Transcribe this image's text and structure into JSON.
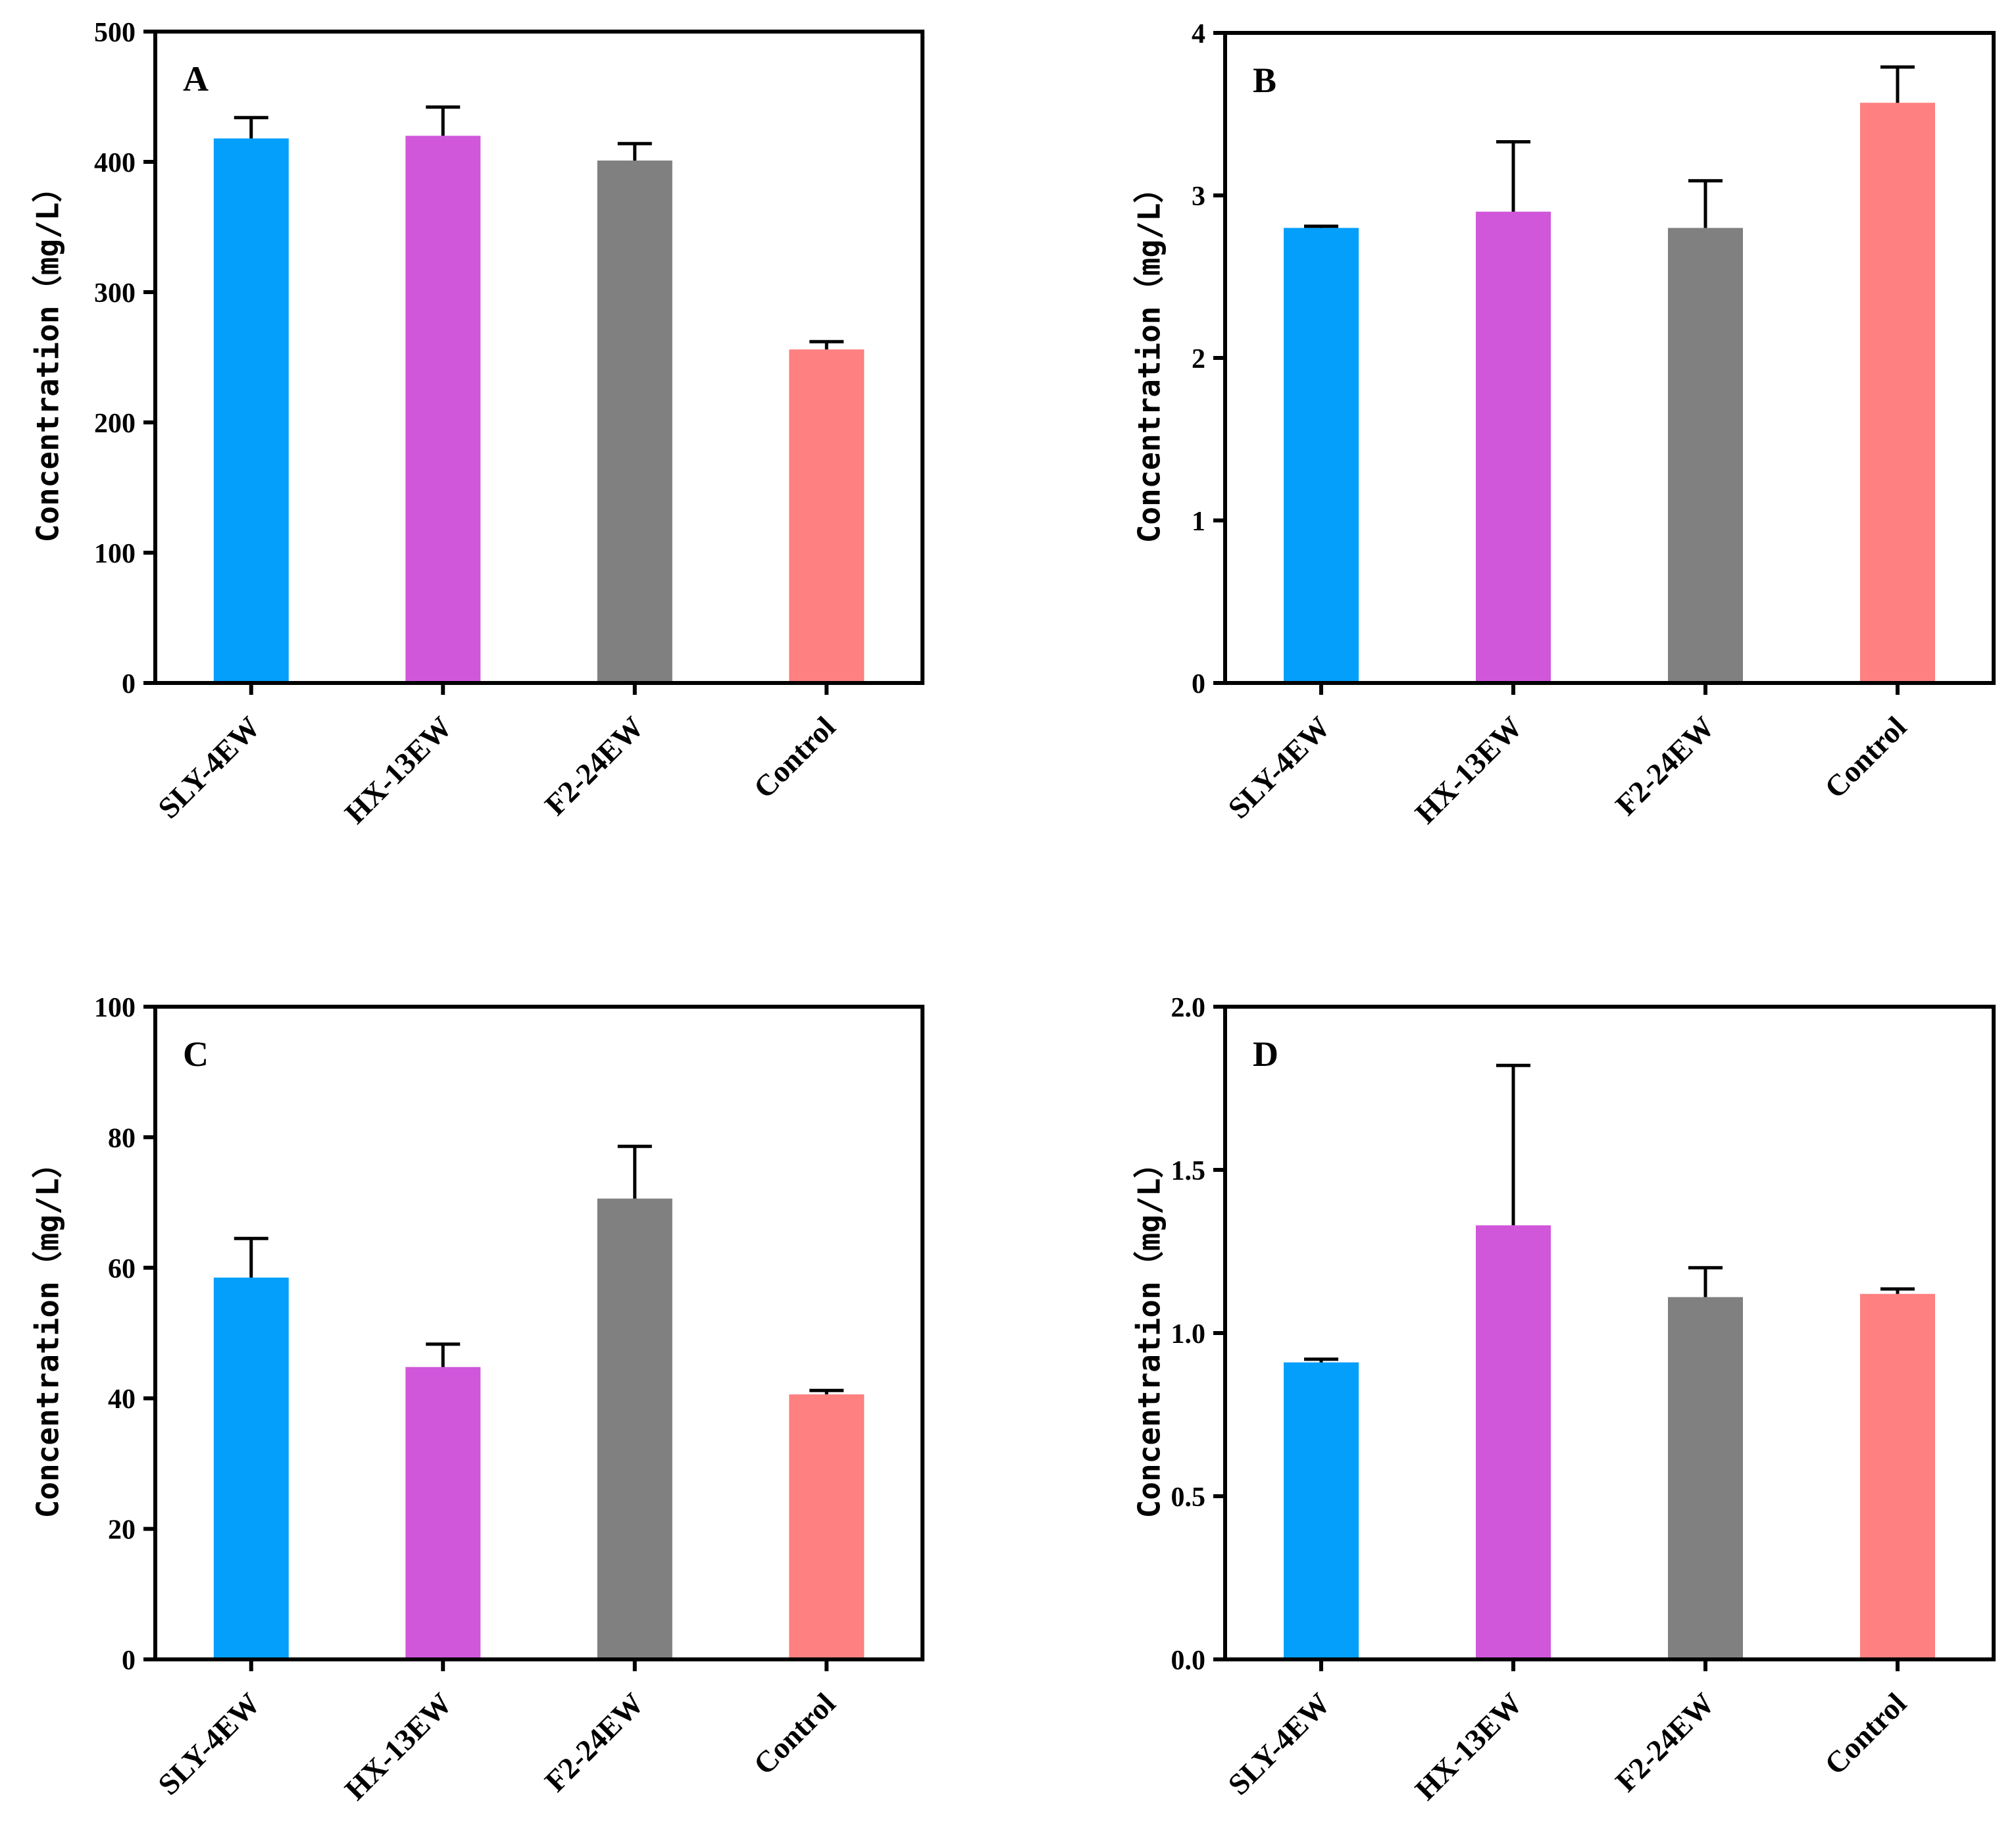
{
  "chart_data": [
    {
      "type": "bar",
      "panel": "A",
      "title": "",
      "xlabel": "",
      "ylabel": "Concentration（mg/L）",
      "ylim": [
        0,
        500
      ],
      "yticks": [
        0,
        100,
        200,
        300,
        400,
        500
      ],
      "tick_labels": [
        "0",
        "100",
        "200",
        "300",
        "400",
        "500"
      ],
      "categories": [
        "SLY-4EW",
        "HX-13EW",
        "F2-24EW",
        "Control"
      ],
      "values": [
        418,
        420,
        401,
        256
      ],
      "errors": [
        16,
        22,
        13,
        6
      ],
      "colors": [
        "#039ffb",
        "#d057da",
        "#808080",
        "#fe8080"
      ]
    },
    {
      "type": "bar",
      "panel": "B",
      "title": "",
      "xlabel": "",
      "ylabel": "Concentration（mg/L）",
      "ylim": [
        0,
        4
      ],
      "yticks": [
        0,
        1,
        2,
        3,
        4
      ],
      "tick_labels": [
        "0",
        "1",
        "2",
        "3",
        "4"
      ],
      "categories": [
        "SLY-4EW",
        "HX-13EW",
        "F2-24EW",
        "Control"
      ],
      "values": [
        2.8,
        2.9,
        2.8,
        3.57
      ],
      "errors": [
        0.01,
        0.43,
        0.29,
        0.22
      ],
      "colors": [
        "#039ffb",
        "#d057da",
        "#808080",
        "#fe8080"
      ]
    },
    {
      "type": "bar",
      "panel": "C",
      "title": "",
      "xlabel": "",
      "ylabel": "Concentration（mg/L）",
      "ylim": [
        0,
        100
      ],
      "yticks": [
        0,
        20,
        40,
        60,
        80,
        100
      ],
      "tick_labels": [
        "0",
        "20",
        "40",
        "60",
        "80",
        "100"
      ],
      "categories": [
        "SLY-4EW",
        "HX-13EW",
        "F2-24EW",
        "Control"
      ],
      "values": [
        58.5,
        44.8,
        70.6,
        40.6
      ],
      "errors": [
        6,
        3.5,
        8,
        0.6
      ],
      "colors": [
        "#039ffb",
        "#d057da",
        "#808080",
        "#fe8080"
      ]
    },
    {
      "type": "bar",
      "panel": "D",
      "title": "",
      "xlabel": "",
      "ylabel": "Concentration（mg/L）",
      "ylim": [
        0,
        2.0
      ],
      "yticks": [
        0,
        0.5,
        1.0,
        1.5,
        2.0
      ],
      "tick_labels": [
        "0.0",
        "0.5",
        "1.0",
        "1.5",
        "2.0"
      ],
      "categories": [
        "SLY-4EW",
        "HX-13EW",
        "F2-24EW",
        "Control"
      ],
      "values": [
        0.91,
        1.33,
        1.11,
        1.12
      ],
      "errors": [
        0.01,
        0.49,
        0.09,
        0.015
      ],
      "colors": [
        "#039ffb",
        "#d057da",
        "#808080",
        "#fe8080"
      ]
    }
  ]
}
